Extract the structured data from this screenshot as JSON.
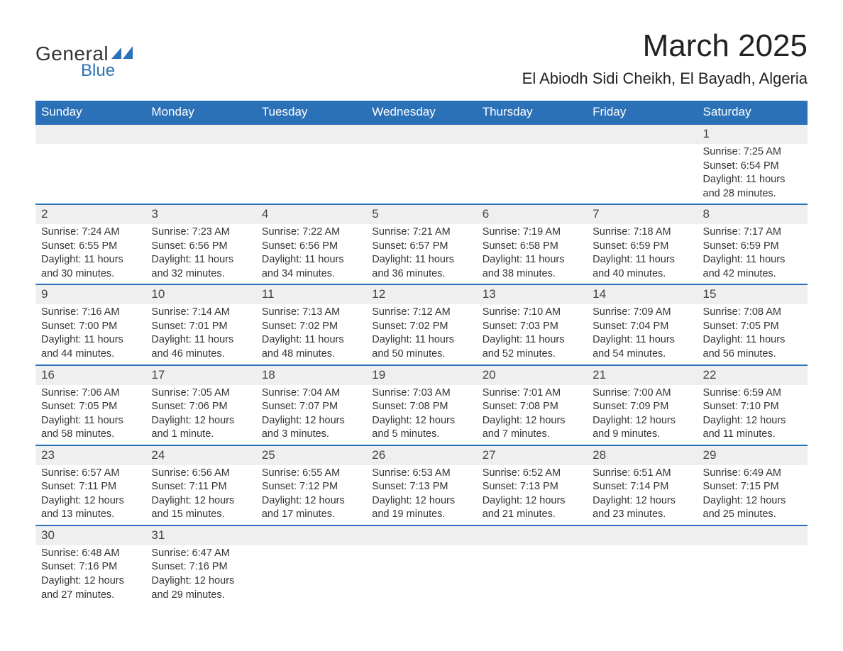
{
  "logo": {
    "text1": "General",
    "text2": "Blue",
    "tri_color": "#2b71b8"
  },
  "title": "March 2025",
  "location": "El Abiodh Sidi Cheikh, El Bayadh, Algeria",
  "colors": {
    "header_bg": "#2b71b8",
    "header_text": "#ffffff",
    "daynum_bg": "#efefef",
    "row_border": "#2b71b8",
    "text": "#333333",
    "bg": "#ffffff"
  },
  "day_headers": [
    "Sunday",
    "Monday",
    "Tuesday",
    "Wednesday",
    "Thursday",
    "Friday",
    "Saturday"
  ],
  "weeks": [
    [
      null,
      null,
      null,
      null,
      null,
      null,
      {
        "n": "1",
        "sr": "7:25 AM",
        "ss": "6:54 PM",
        "dl": "11 hours and 28 minutes."
      }
    ],
    [
      {
        "n": "2",
        "sr": "7:24 AM",
        "ss": "6:55 PM",
        "dl": "11 hours and 30 minutes."
      },
      {
        "n": "3",
        "sr": "7:23 AM",
        "ss": "6:56 PM",
        "dl": "11 hours and 32 minutes."
      },
      {
        "n": "4",
        "sr": "7:22 AM",
        "ss": "6:56 PM",
        "dl": "11 hours and 34 minutes."
      },
      {
        "n": "5",
        "sr": "7:21 AM",
        "ss": "6:57 PM",
        "dl": "11 hours and 36 minutes."
      },
      {
        "n": "6",
        "sr": "7:19 AM",
        "ss": "6:58 PM",
        "dl": "11 hours and 38 minutes."
      },
      {
        "n": "7",
        "sr": "7:18 AM",
        "ss": "6:59 PM",
        "dl": "11 hours and 40 minutes."
      },
      {
        "n": "8",
        "sr": "7:17 AM",
        "ss": "6:59 PM",
        "dl": "11 hours and 42 minutes."
      }
    ],
    [
      {
        "n": "9",
        "sr": "7:16 AM",
        "ss": "7:00 PM",
        "dl": "11 hours and 44 minutes."
      },
      {
        "n": "10",
        "sr": "7:14 AM",
        "ss": "7:01 PM",
        "dl": "11 hours and 46 minutes."
      },
      {
        "n": "11",
        "sr": "7:13 AM",
        "ss": "7:02 PM",
        "dl": "11 hours and 48 minutes."
      },
      {
        "n": "12",
        "sr": "7:12 AM",
        "ss": "7:02 PM",
        "dl": "11 hours and 50 minutes."
      },
      {
        "n": "13",
        "sr": "7:10 AM",
        "ss": "7:03 PM",
        "dl": "11 hours and 52 minutes."
      },
      {
        "n": "14",
        "sr": "7:09 AM",
        "ss": "7:04 PM",
        "dl": "11 hours and 54 minutes."
      },
      {
        "n": "15",
        "sr": "7:08 AM",
        "ss": "7:05 PM",
        "dl": "11 hours and 56 minutes."
      }
    ],
    [
      {
        "n": "16",
        "sr": "7:06 AM",
        "ss": "7:05 PM",
        "dl": "11 hours and 58 minutes."
      },
      {
        "n": "17",
        "sr": "7:05 AM",
        "ss": "7:06 PM",
        "dl": "12 hours and 1 minute."
      },
      {
        "n": "18",
        "sr": "7:04 AM",
        "ss": "7:07 PM",
        "dl": "12 hours and 3 minutes."
      },
      {
        "n": "19",
        "sr": "7:03 AM",
        "ss": "7:08 PM",
        "dl": "12 hours and 5 minutes."
      },
      {
        "n": "20",
        "sr": "7:01 AM",
        "ss": "7:08 PM",
        "dl": "12 hours and 7 minutes."
      },
      {
        "n": "21",
        "sr": "7:00 AM",
        "ss": "7:09 PM",
        "dl": "12 hours and 9 minutes."
      },
      {
        "n": "22",
        "sr": "6:59 AM",
        "ss": "7:10 PM",
        "dl": "12 hours and 11 minutes."
      }
    ],
    [
      {
        "n": "23",
        "sr": "6:57 AM",
        "ss": "7:11 PM",
        "dl": "12 hours and 13 minutes."
      },
      {
        "n": "24",
        "sr": "6:56 AM",
        "ss": "7:11 PM",
        "dl": "12 hours and 15 minutes."
      },
      {
        "n": "25",
        "sr": "6:55 AM",
        "ss": "7:12 PM",
        "dl": "12 hours and 17 minutes."
      },
      {
        "n": "26",
        "sr": "6:53 AM",
        "ss": "7:13 PM",
        "dl": "12 hours and 19 minutes."
      },
      {
        "n": "27",
        "sr": "6:52 AM",
        "ss": "7:13 PM",
        "dl": "12 hours and 21 minutes."
      },
      {
        "n": "28",
        "sr": "6:51 AM",
        "ss": "7:14 PM",
        "dl": "12 hours and 23 minutes."
      },
      {
        "n": "29",
        "sr": "6:49 AM",
        "ss": "7:15 PM",
        "dl": "12 hours and 25 minutes."
      }
    ],
    [
      {
        "n": "30",
        "sr": "6:48 AM",
        "ss": "7:16 PM",
        "dl": "12 hours and 27 minutes."
      },
      {
        "n": "31",
        "sr": "6:47 AM",
        "ss": "7:16 PM",
        "dl": "12 hours and 29 minutes."
      },
      null,
      null,
      null,
      null,
      null
    ]
  ],
  "labels": {
    "sunrise": "Sunrise: ",
    "sunset": "Sunset: ",
    "daylight": "Daylight: "
  }
}
